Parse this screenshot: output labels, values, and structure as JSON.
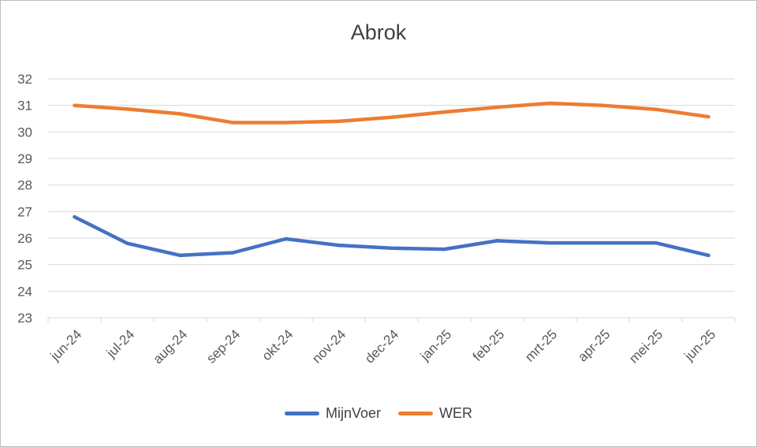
{
  "chart_data": {
    "type": "line",
    "title": "Abrok",
    "xlabel": "",
    "ylabel": "",
    "categories": [
      "jun-24",
      "jul-24",
      "aug-24",
      "sep-24",
      "okt-24",
      "nov-24",
      "dec-24",
      "jan-25",
      "feb-25",
      "mrt-25",
      "apr-25",
      "mei-25",
      "jun-25"
    ],
    "ylim": [
      23,
      32
    ],
    "yticks": [
      23,
      24,
      25,
      26,
      27,
      28,
      29,
      30,
      31,
      32
    ],
    "grid": true,
    "legend": "bottom",
    "series": [
      {
        "name": "MijnVoer",
        "color": "#4472c4",
        "values": [
          26.8,
          25.8,
          25.35,
          25.45,
          25.97,
          25.73,
          25.62,
          25.58,
          25.9,
          25.82,
          25.82,
          25.82,
          25.35
        ]
      },
      {
        "name": "WER",
        "color": "#ed7d31",
        "values": [
          31.0,
          30.86,
          30.68,
          30.35,
          30.35,
          30.4,
          30.55,
          30.75,
          30.93,
          31.08,
          31.0,
          30.85,
          30.57
        ]
      }
    ]
  }
}
